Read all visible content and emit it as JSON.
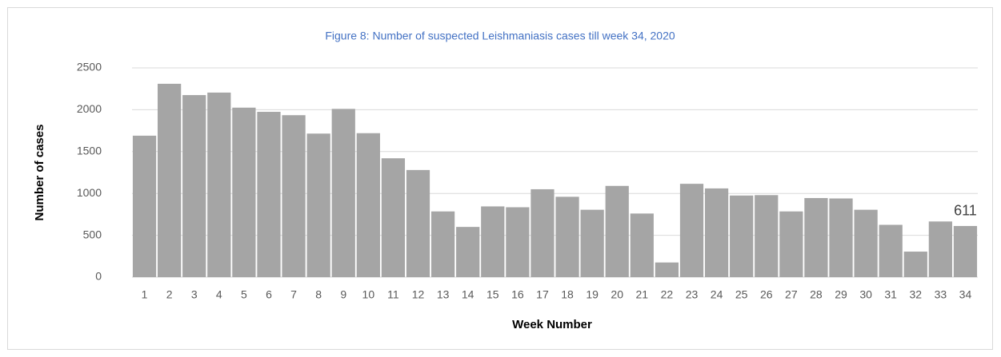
{
  "chart_data": {
    "type": "bar",
    "title": "Figure 8: Number of suspected Leishmaniasis cases till week 34, 2020",
    "x_label": "Week Number",
    "y_label": "Number of cases",
    "categories": [
      "1",
      "2",
      "3",
      "4",
      "5",
      "6",
      "7",
      "8",
      "9",
      "10",
      "11",
      "12",
      "13",
      "14",
      "15",
      "16",
      "17",
      "18",
      "19",
      "20",
      "21",
      "22",
      "23",
      "24",
      "25",
      "26",
      "27",
      "28",
      "29",
      "30",
      "31",
      "32",
      "33",
      "34"
    ],
    "values": [
      1690,
      2310,
      2175,
      2205,
      2025,
      1975,
      1935,
      1715,
      2010,
      1720,
      1420,
      1280,
      785,
      600,
      845,
      835,
      1050,
      960,
      805,
      1090,
      760,
      175,
      1115,
      1060,
      975,
      980,
      785,
      945,
      940,
      805,
      625,
      305,
      665,
      611
    ],
    "value_labels": [
      null,
      null,
      null,
      null,
      null,
      null,
      null,
      null,
      null,
      null,
      null,
      null,
      null,
      null,
      null,
      null,
      null,
      null,
      null,
      null,
      null,
      null,
      null,
      null,
      null,
      null,
      null,
      null,
      null,
      null,
      null,
      null,
      null,
      "611"
    ],
    "color": "#a5a5a5",
    "ylim": [
      0,
      2500
    ],
    "yticks": [
      0,
      500,
      1000,
      1500,
      2000,
      2500
    ],
    "grid": true
  }
}
